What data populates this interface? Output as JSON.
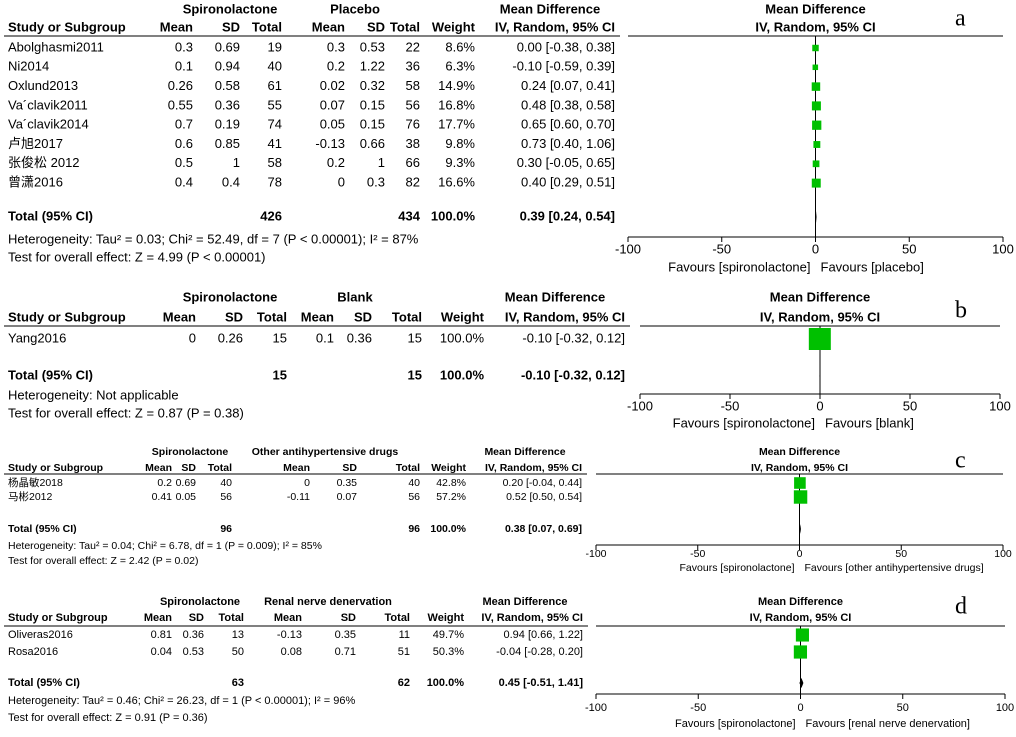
{
  "chart_data": [
    {
      "type": "forest",
      "panel_label": "a",
      "groups": [
        "Spironolactone",
        "Placebo"
      ],
      "columns": [
        "Study or Subgroup",
        "Mean",
        "SD",
        "Total",
        "Mean",
        "SD",
        "Total",
        "Weight",
        "IV, Random, 95% CI"
      ],
      "effect_header": "Mean Difference",
      "plot_header": [
        "Mean Difference",
        "IV, Random, 95% CI"
      ],
      "studies": [
        {
          "name": "Abolghasmi2011",
          "cells": [
            0.3,
            0.69,
            19,
            0.3,
            0.53,
            22
          ],
          "weight": 8.6,
          "weight_label": "8.6%",
          "md": 0,
          "ci": [
            -0.38,
            0.38
          ],
          "md_label": "0.00 [-0.38, 0.38]"
        },
        {
          "name": "Ni2014",
          "cells": [
            0.1,
            0.94,
            40,
            0.2,
            1.22,
            36
          ],
          "weight": 6.3,
          "weight_label": "6.3%",
          "md": -0.1,
          "ci": [
            -0.59,
            0.39
          ],
          "md_label": "-0.10 [-0.59, 0.39]"
        },
        {
          "name": "Oxlund2013",
          "cells": [
            0.26,
            0.58,
            61,
            0.02,
            0.32,
            58
          ],
          "weight": 14.9,
          "weight_label": "14.9%",
          "md": 0.24,
          "ci": [
            0.07,
            0.41
          ],
          "md_label": "0.24 [0.07, 0.41]"
        },
        {
          "name": "Va´clavik2011",
          "cells": [
            0.55,
            0.36,
            55,
            0.07,
            0.15,
            56
          ],
          "weight": 16.8,
          "weight_label": "16.8%",
          "md": 0.48,
          "ci": [
            0.38,
            0.58
          ],
          "md_label": "0.48 [0.38, 0.58]"
        },
        {
          "name": "Va´clavik2014",
          "cells": [
            0.7,
            0.19,
            74,
            0.05,
            0.15,
            76
          ],
          "weight": 17.7,
          "weight_label": "17.7%",
          "md": 0.65,
          "ci": [
            0.6,
            0.7
          ],
          "md_label": "0.65 [0.60, 0.70]"
        },
        {
          "name": "卢旭2017",
          "cells": [
            0.6,
            0.85,
            41,
            -0.13,
            0.66,
            38
          ],
          "weight": 9.8,
          "weight_label": "9.8%",
          "md": 0.73,
          "ci": [
            0.4,
            1.06
          ],
          "md_label": "0.73 [0.40, 1.06]"
        },
        {
          "name": "张俊松 2012",
          "cells": [
            0.5,
            1,
            58,
            0.2,
            1,
            66
          ],
          "weight": 9.3,
          "weight_label": "9.3%",
          "md": 0.3,
          "ci": [
            -0.05,
            0.65
          ],
          "md_label": "0.30 [-0.05, 0.65]"
        },
        {
          "name": "曾潇2016",
          "cells": [
            0.4,
            0.4,
            78,
            0,
            0.3,
            82
          ],
          "weight": 16.6,
          "weight_label": "16.6%",
          "md": 0.4,
          "ci": [
            0.29,
            0.51
          ],
          "md_label": "0.40 [0.29, 0.51]"
        }
      ],
      "total": {
        "label": "Total (95% CI)",
        "n": [
          426,
          434
        ],
        "weight": 100,
        "weight_label": "100.0%",
        "md": 0.39,
        "ci": [
          0.24,
          0.54
        ],
        "md_label": "0.39 [0.24, 0.54]"
      },
      "heterogeneity": "Heterogeneity: Tau² = 0.03; Chi² = 52.49, df = 7 (P < 0.00001); I² = 87%",
      "overall_test": "Test for overall effect: Z = 4.99 (P < 0.00001)",
      "xlim": [
        -100,
        100
      ],
      "xticks": [
        -100,
        -50,
        0,
        50,
        100
      ],
      "favours": [
        "Favours [spironolactone]",
        "Favours [placebo]"
      ],
      "color": "#00c000"
    },
    {
      "type": "forest",
      "panel_label": "b",
      "groups": [
        "Spironolactone",
        "Blank"
      ],
      "columns": [
        "Study or Subgroup",
        "Mean",
        "SD",
        "Total",
        "Mean",
        "SD",
        "Total",
        "Weight",
        "IV, Random, 95% CI"
      ],
      "effect_header": "Mean Difference",
      "plot_header": [
        "Mean Difference",
        "IV, Random, 95% CI"
      ],
      "studies": [
        {
          "name": "Yang2016",
          "cells": [
            0,
            0.26,
            15,
            0.1,
            0.36,
            15
          ],
          "weight": 100,
          "weight_label": "100.0%",
          "md": -0.1,
          "ci": [
            -0.32,
            0.12
          ],
          "md_label": "-0.10 [-0.32, 0.12]"
        }
      ],
      "total": {
        "label": "Total (95% CI)",
        "n": [
          15,
          15
        ],
        "weight": 100,
        "weight_label": "100.0%",
        "md": -0.1,
        "ci": [
          -0.32,
          0.12
        ],
        "md_label": "-0.10 [-0.32, 0.12]"
      },
      "heterogeneity": "Heterogeneity: Not applicable",
      "overall_test": "Test for overall effect: Z = 0.87 (P = 0.38)",
      "xlim": [
        -100,
        100
      ],
      "xticks": [
        -100,
        -50,
        0,
        50,
        100
      ],
      "favours": [
        "Favours [spironolactone]",
        "Favours [blank]"
      ],
      "color": "#00c000"
    },
    {
      "type": "forest",
      "panel_label": "c",
      "groups": [
        "Spironolactone",
        "Other antihypertensive drugs"
      ],
      "columns": [
        "Study or Subgroup",
        "Mean",
        "SD",
        "Total",
        "Mean",
        "SD",
        "Total",
        "Weight",
        "IV, Random, 95% CI"
      ],
      "effect_header": "Mean Difference",
      "plot_header": [
        "Mean Difference",
        "IV, Random, 95% CI"
      ],
      "studies": [
        {
          "name": "杨晶敏2018",
          "cells": [
            0.2,
            0.69,
            40,
            0,
            0.35,
            40
          ],
          "weight": 42.8,
          "weight_label": "42.8%",
          "md": 0.2,
          "ci": [
            -0.04,
            0.44
          ],
          "md_label": "0.20 [-0.04, 0.44]"
        },
        {
          "name": "马彬2012",
          "cells": [
            0.41,
            0.05,
            56,
            -0.11,
            0.07,
            56
          ],
          "weight": 57.2,
          "weight_label": "57.2%",
          "md": 0.52,
          "ci": [
            0.5,
            0.54
          ],
          "md_label": "0.52 [0.50, 0.54]"
        }
      ],
      "total": {
        "label": "Total (95% CI)",
        "n": [
          96,
          96
        ],
        "weight": 100,
        "weight_label": "100.0%",
        "md": 0.38,
        "ci": [
          0.07,
          0.69
        ],
        "md_label": "0.38 [0.07, 0.69]"
      },
      "heterogeneity": "Heterogeneity: Tau² = 0.04; Chi² = 6.78, df = 1 (P = 0.009); I² = 85%",
      "overall_test": "Test for overall effect: Z = 2.42 (P = 0.02)",
      "xlim": [
        -100,
        100
      ],
      "xticks": [
        -100,
        -50,
        0,
        50,
        100
      ],
      "favours": [
        "Favours [spironolactone]",
        "Favours [other antihypertensive drugs]"
      ],
      "color": "#00c000"
    },
    {
      "type": "forest",
      "panel_label": "d",
      "groups": [
        "Spironolactone",
        "Renal nerve denervation"
      ],
      "columns": [
        "Study or Subgroup",
        "Mean",
        "SD",
        "Total",
        "Mean",
        "SD",
        "Total",
        "Weight",
        "IV, Random, 95% CI"
      ],
      "effect_header": "Mean Difference",
      "plot_header": [
        "Mean Difference",
        "IV, Random, 95% CI"
      ],
      "studies": [
        {
          "name": "Oliveras2016",
          "cells": [
            0.81,
            0.36,
            13,
            -0.13,
            0.35,
            11
          ],
          "weight": 49.7,
          "weight_label": "49.7%",
          "md": 0.94,
          "ci": [
            0.66,
            1.22
          ],
          "md_label": "0.94 [0.66, 1.22]"
        },
        {
          "name": "Rosa2016",
          "cells": [
            0.04,
            0.53,
            50,
            0.08,
            0.71,
            51
          ],
          "weight": 50.3,
          "weight_label": "50.3%",
          "md": -0.04,
          "ci": [
            -0.28,
            0.2
          ],
          "md_label": "-0.04 [-0.28, 0.20]"
        }
      ],
      "total": {
        "label": "Total (95% CI)",
        "n": [
          63,
          62
        ],
        "weight": 100,
        "weight_label": "100.0%",
        "md": 0.45,
        "ci": [
          -0.51,
          1.41
        ],
        "md_label": "0.45 [-0.51, 1.41]"
      },
      "heterogeneity": "Heterogeneity: Tau² = 0.46; Chi² = 26.23, df = 1 (P < 0.00001); I² = 96%",
      "overall_test": "Test for overall effect: Z = 0.91 (P = 0.36)",
      "xlim": [
        -100,
        100
      ],
      "xticks": [
        -100,
        -50,
        0,
        50,
        100
      ],
      "favours": [
        "Favours [spironolactone]",
        "Favours [renal nerve denervation]"
      ],
      "color": "#00c000"
    }
  ]
}
